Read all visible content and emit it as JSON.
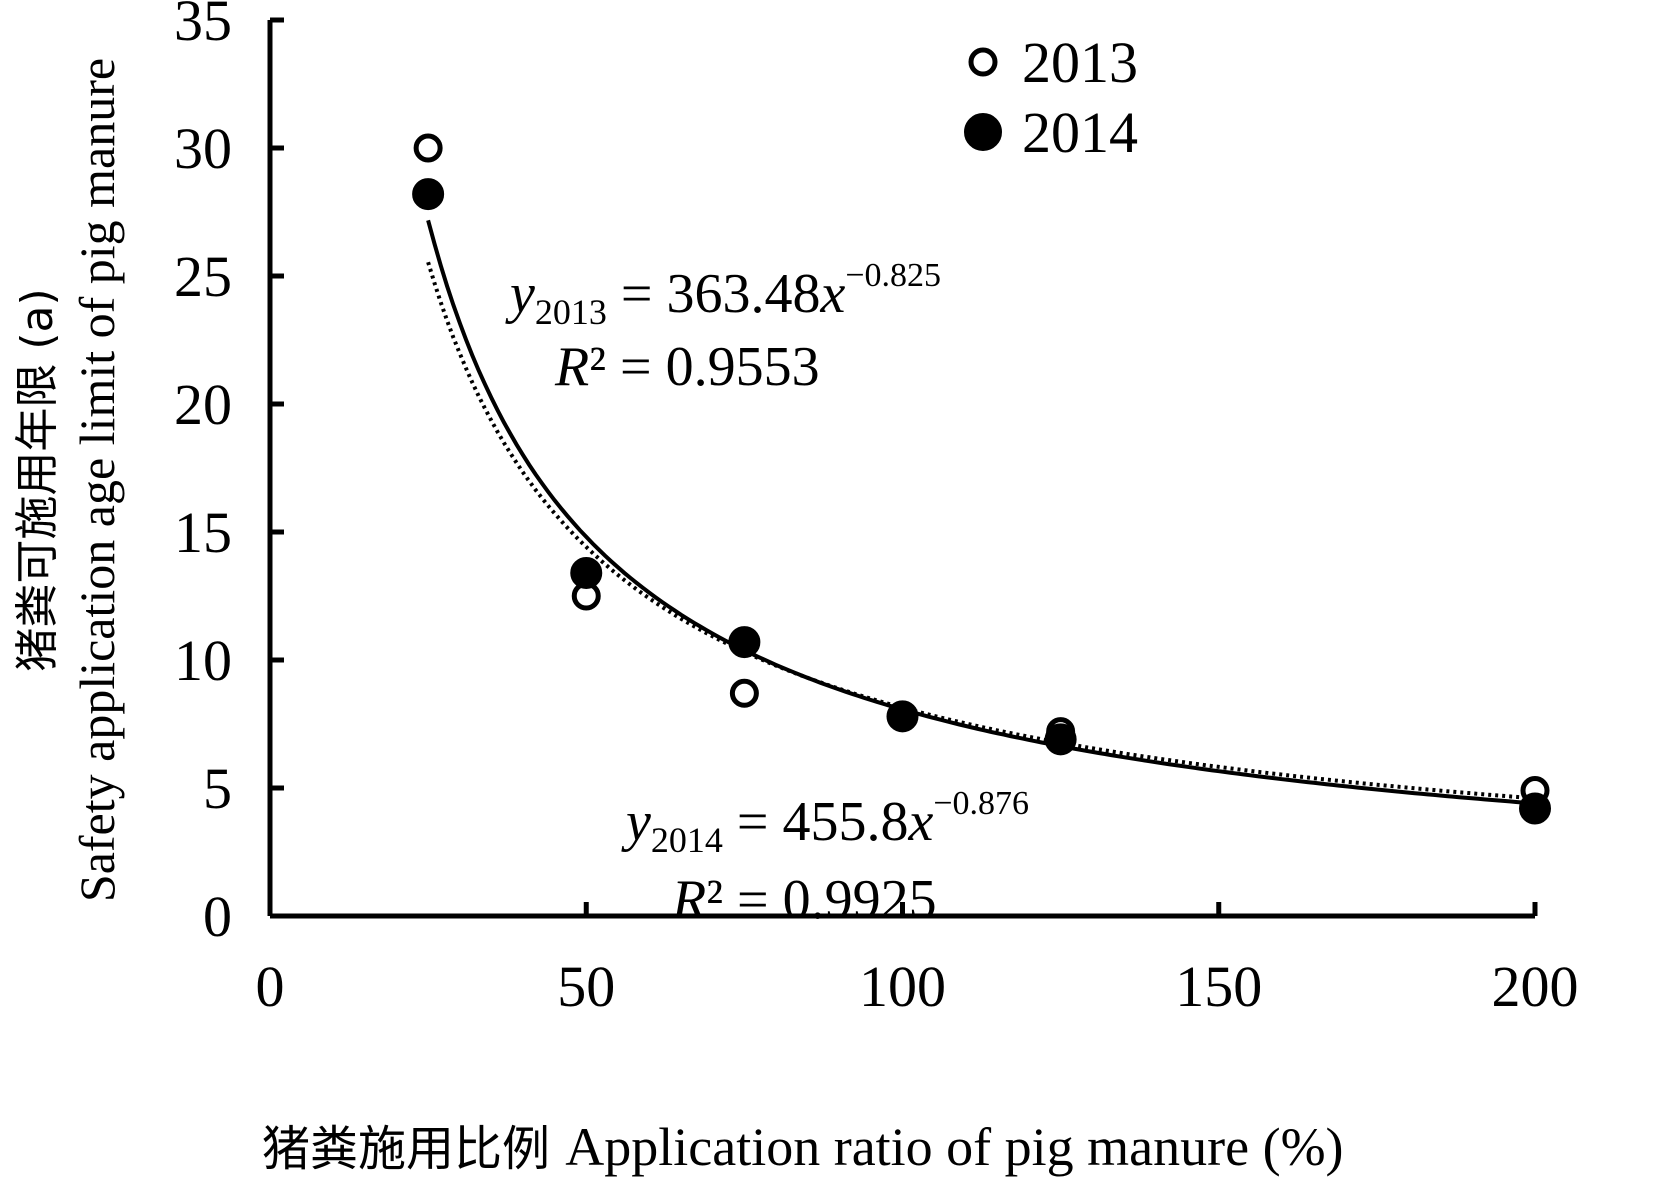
{
  "chart_data": {
    "type": "scatter",
    "xlabel_cn": "猪粪施用比例",
    "xlabel_en": "Application ratio of pig manure (%)",
    "ylabel_cn": "猪粪可施用年限 (a)",
    "ylabel_en": "Safety application age limit of pig manure",
    "xlim": [
      0,
      200
    ],
    "ylim": [
      0,
      35
    ],
    "xticks": [
      0,
      50,
      100,
      150,
      200
    ],
    "yticks": [
      0,
      5,
      10,
      15,
      20,
      25,
      30,
      35
    ],
    "legend_position": "top-right",
    "series": [
      {
        "name": "2013",
        "marker": "open-circle",
        "color": "#000000",
        "x": [
          25,
          50,
          75,
          100,
          125,
          200
        ],
        "y": [
          30.0,
          12.5,
          8.7,
          7.8,
          7.2,
          4.9
        ],
        "fit": {
          "label_var": "y",
          "label_sub": "2013",
          "equation_rhs": " = 363.48",
          "equation_x": "x",
          "exponent": "−0.825",
          "r2_label": "R",
          "r2_rhs": "² = 0.9553",
          "a": 363.48,
          "b": -0.825,
          "style": "dotted"
        }
      },
      {
        "name": "2014",
        "marker": "filled-circle",
        "color": "#000000",
        "x": [
          25,
          50,
          75,
          100,
          125,
          200
        ],
        "y": [
          28.2,
          13.4,
          10.7,
          7.8,
          6.9,
          4.2
        ],
        "fit": {
          "label_var": "y",
          "label_sub": "2014",
          "equation_rhs": " = 455.8",
          "equation_x": "x",
          "exponent": "−0.876",
          "r2_label": "R",
          "r2_rhs": "² = 0.9925",
          "a": 455.8,
          "b": -0.876,
          "style": "solid"
        }
      }
    ]
  }
}
